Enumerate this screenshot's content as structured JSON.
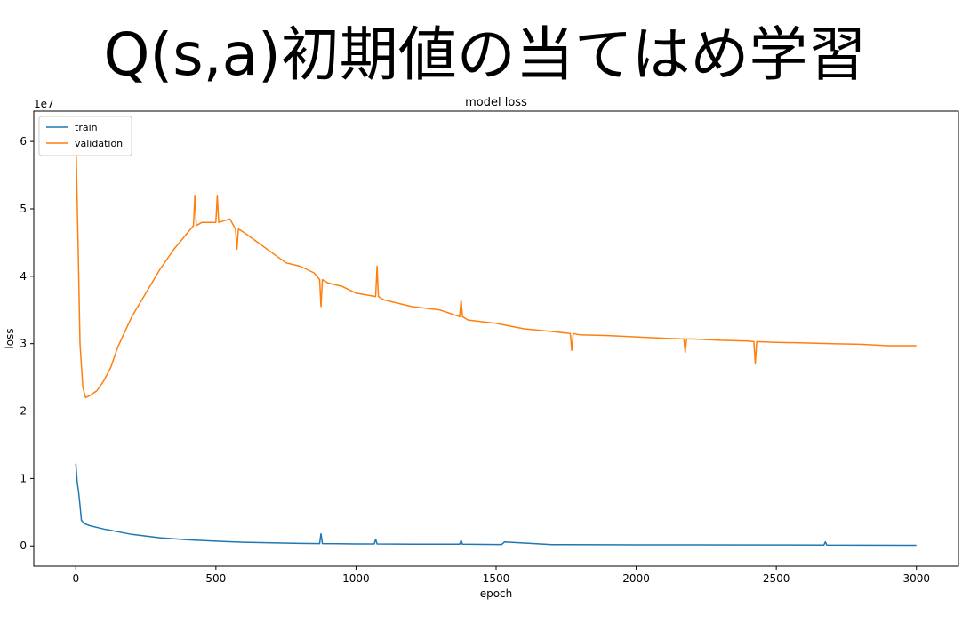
{
  "slide": {
    "title": "Q(s,a)初期値の当てはめ学習"
  },
  "chart_data": {
    "type": "line",
    "title": "model loss",
    "xlabel": "epoch",
    "ylabel": "loss",
    "y_offset_label": "1e7",
    "xlim": [
      -150,
      3150
    ],
    "ylim": [
      -3000000,
      64500000
    ],
    "x_ticks": [
      0,
      500,
      1000,
      1500,
      2000,
      2500,
      3000
    ],
    "x_tick_labels": [
      "0",
      "500",
      "1000",
      "1500",
      "2000",
      "2500",
      "3000"
    ],
    "y_ticks": [
      0,
      10000000,
      20000000,
      30000000,
      40000000,
      50000000,
      60000000
    ],
    "y_tick_labels": [
      "0",
      "1",
      "2",
      "3",
      "4",
      "5",
      "6"
    ],
    "grid": false,
    "legend_position": "upper-left",
    "series": [
      {
        "name": "train",
        "color": "#1f77b4",
        "x": [
          0,
          5,
          10,
          15,
          20,
          30,
          50,
          80,
          100,
          150,
          200,
          300,
          400,
          500,
          600,
          700,
          800,
          870,
          875,
          880,
          1000,
          1065,
          1070,
          1075,
          1200,
          1370,
          1375,
          1380,
          1500,
          1520,
          1530,
          1700,
          1900,
          2000,
          2200,
          2500,
          2670,
          2675,
          2680,
          3000
        ],
        "y": [
          12200000,
          9500000,
          8000000,
          6000000,
          3800000,
          3300000,
          3000000,
          2700000,
          2500000,
          2100000,
          1700000,
          1200000,
          900000,
          700000,
          550000,
          450000,
          380000,
          350000,
          1800000,
          350000,
          300000,
          300000,
          1000000,
          300000,
          250000,
          250000,
          800000,
          250000,
          220000,
          220000,
          600000,
          200000,
          180000,
          170000,
          160000,
          150000,
          140000,
          600000,
          140000,
          100000
        ]
      },
      {
        "name": "validation",
        "color": "#ff7f0e",
        "x": [
          0,
          3,
          8,
          15,
          25,
          35,
          50,
          75,
          100,
          125,
          150,
          200,
          250,
          300,
          350,
          400,
          420,
          425,
          430,
          450,
          500,
          505,
          510,
          550,
          570,
          575,
          580,
          600,
          650,
          700,
          750,
          800,
          850,
          870,
          875,
          880,
          900,
          950,
          1000,
          1070,
          1075,
          1080,
          1100,
          1200,
          1300,
          1370,
          1375,
          1380,
          1400,
          1500,
          1600,
          1700,
          1765,
          1770,
          1775,
          1800,
          1900,
          2000,
          2100,
          2170,
          2175,
          2180,
          2200,
          2300,
          2400,
          2420,
          2425,
          2430,
          2500,
          2600,
          2700,
          2800,
          2900,
          3000
        ],
        "y": [
          61000000,
          55000000,
          45000000,
          30000000,
          23500000,
          22000000,
          22300000,
          23000000,
          24500000,
          26500000,
          29500000,
          34000000,
          37500000,
          41000000,
          44000000,
          46500000,
          47500000,
          52000000,
          47500000,
          48000000,
          48000000,
          52000000,
          48000000,
          48500000,
          47000000,
          44000000,
          47000000,
          46500000,
          45000000,
          43500000,
          42000000,
          41500000,
          40500000,
          39500000,
          35500000,
          39500000,
          39000000,
          38500000,
          37500000,
          37000000,
          41500000,
          37000000,
          36500000,
          35500000,
          35000000,
          34000000,
          36500000,
          34000000,
          33500000,
          33000000,
          32200000,
          31800000,
          31500000,
          29000000,
          31500000,
          31300000,
          31200000,
          31000000,
          30800000,
          30700000,
          28700000,
          30700000,
          30700000,
          30500000,
          30400000,
          30300000,
          27000000,
          30300000,
          30200000,
          30100000,
          30000000,
          29900000,
          29700000,
          29700000
        ]
      }
    ]
  }
}
